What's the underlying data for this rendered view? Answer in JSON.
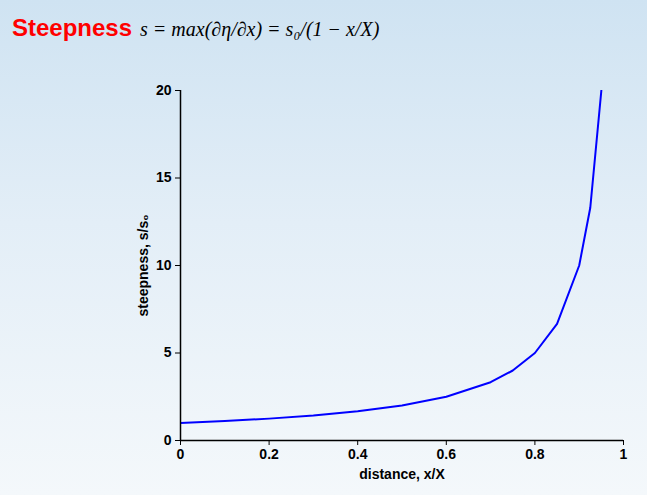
{
  "chart_data": {
    "type": "line",
    "title": "Steepness",
    "subtitle": "s = max(∂η/∂x) = s₀/(1 − x/X)",
    "x_label": "distance, x/X",
    "y_label": "steepness, s/s₀",
    "x": [
      0,
      0.1,
      0.2,
      0.3,
      0.4,
      0.5,
      0.6,
      0.7,
      0.75,
      0.8,
      0.85,
      0.9,
      0.925,
      0.95
    ],
    "values": [
      1,
      1.11,
      1.25,
      1.43,
      1.67,
      2,
      2.5,
      3.33,
      4,
      5,
      6.67,
      10,
      13.3,
      20
    ],
    "color": "#0000ff",
    "line_style": "solid",
    "xlim": [
      0,
      1
    ],
    "ylim": [
      0,
      20
    ],
    "xticks": [
      0,
      0.2,
      0.4,
      0.6,
      0.8,
      1
    ],
    "yticks": [
      0,
      5,
      10,
      15,
      20
    ],
    "grid": false
  }
}
